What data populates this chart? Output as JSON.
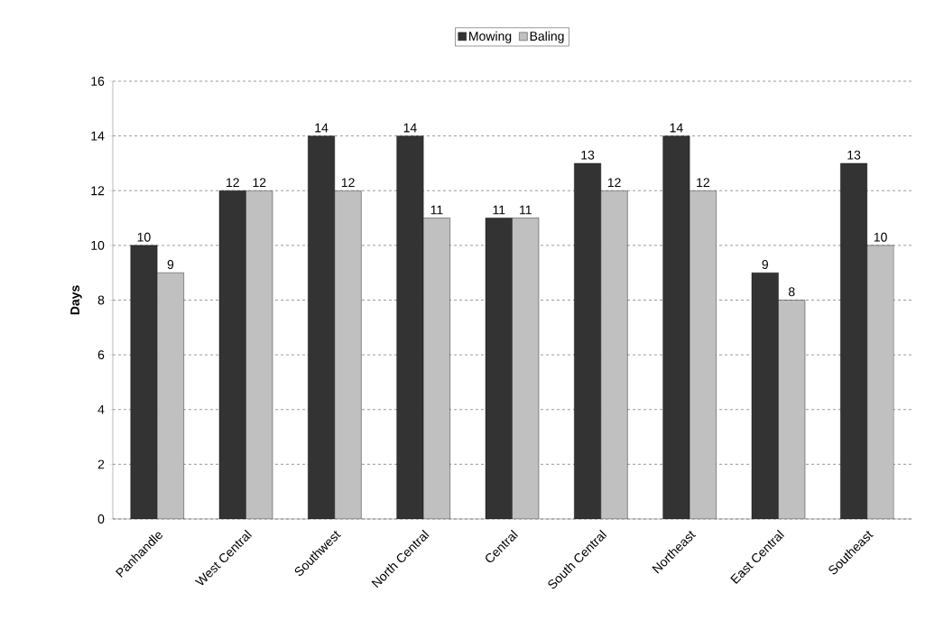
{
  "chart_data": {
    "type": "bar",
    "ylabel": "Days",
    "categories": [
      "Panhandle",
      "West Central",
      "Southwest",
      "North Central",
      "Central",
      "South Central",
      "Northeast",
      "East Central",
      "Southeast"
    ],
    "series": [
      {
        "name": "Mowing",
        "color": "#333333",
        "values": [
          10,
          12,
          14,
          14,
          11,
          13,
          14,
          9,
          13
        ]
      },
      {
        "name": "Baling",
        "color": "#c0c0c0",
        "values": [
          9,
          12,
          12,
          11,
          11,
          12,
          12,
          8,
          10
        ]
      }
    ],
    "ylim": [
      0,
      16
    ],
    "yticks": [
      0,
      2,
      4,
      6,
      8,
      10,
      12,
      14,
      16
    ],
    "grid": "y",
    "legend": "top",
    "data_labels": true
  }
}
